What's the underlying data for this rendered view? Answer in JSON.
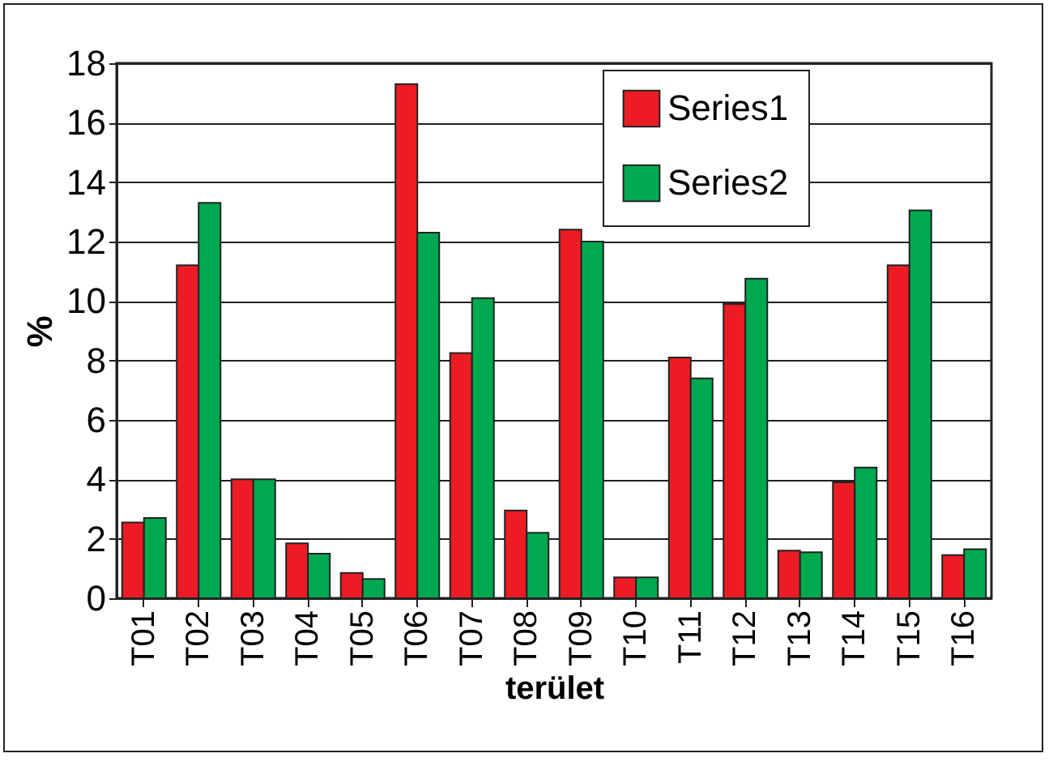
{
  "chart_data": {
    "type": "bar",
    "xlabel": "terület",
    "ylabel": "%",
    "categories": [
      "T01",
      "T02",
      "T03",
      "T04",
      "T05",
      "T06",
      "T07",
      "T08",
      "T09",
      "T10",
      "T11",
      "T12",
      "T13",
      "T14",
      "T15",
      "T16"
    ],
    "series": [
      {
        "name": "Series1",
        "color": "#ed1c24",
        "values": [
          2.55,
          11.2,
          4.0,
          1.85,
          0.85,
          17.3,
          8.25,
          2.95,
          12.4,
          0.7,
          8.1,
          9.9,
          1.6,
          3.9,
          11.2,
          1.45
        ]
      },
      {
        "name": "Series2",
        "color": "#00a850",
        "values": [
          2.7,
          13.3,
          4.0,
          1.5,
          0.65,
          12.3,
          10.1,
          2.2,
          12.0,
          0.7,
          7.4,
          10.75,
          1.55,
          4.4,
          13.05,
          1.65
        ]
      }
    ],
    "ylim": [
      0,
      18
    ],
    "yticks": [
      0,
      2,
      4,
      6,
      8,
      10,
      12,
      14,
      16,
      18
    ],
    "grid": "y",
    "legend": "top right"
  }
}
